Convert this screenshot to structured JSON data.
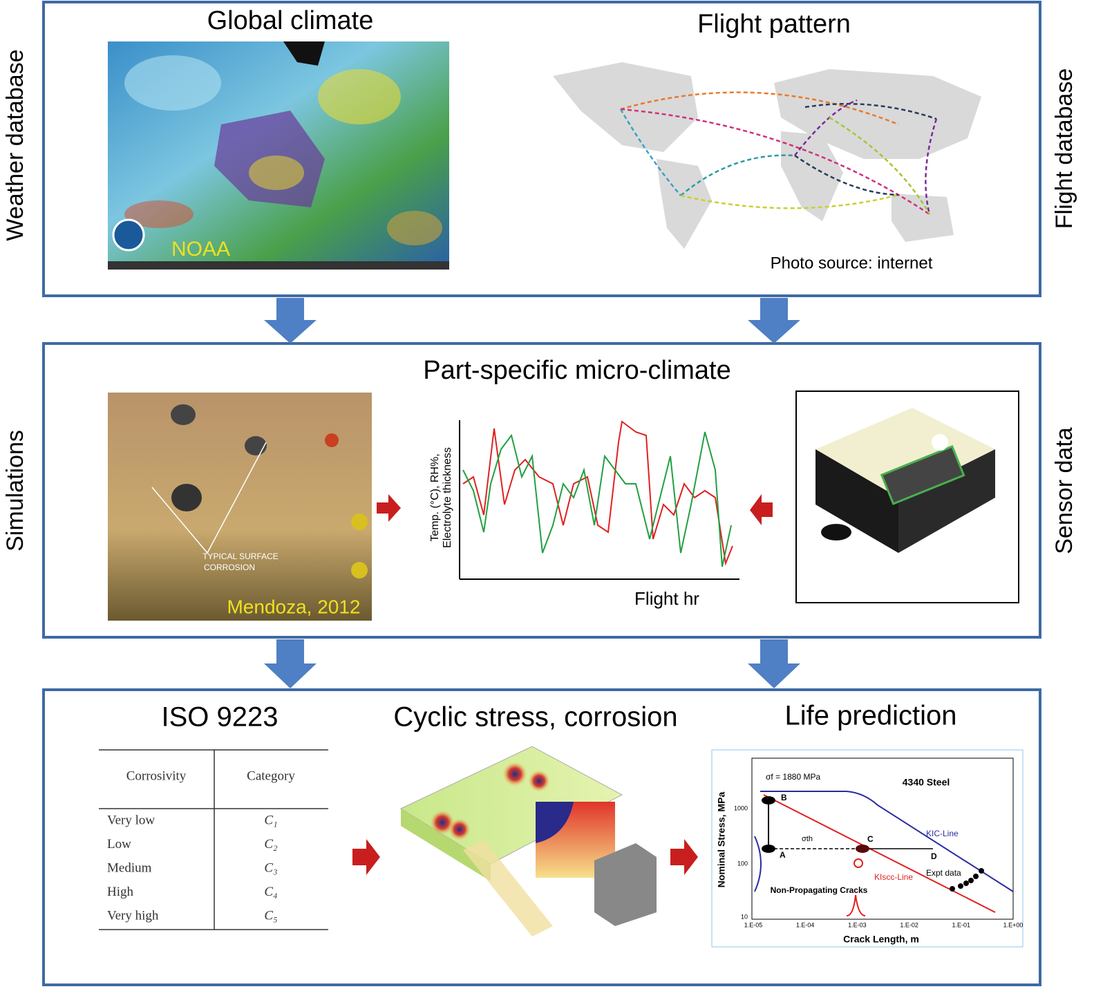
{
  "side_labels": {
    "weather": "Weather database",
    "flight": "Flight database",
    "simulations": "Simulations",
    "sensor": "Sensor data"
  },
  "top": {
    "global_title": "Global climate",
    "noaa": "NOAA",
    "flight_title": "Flight pattern",
    "photo_source": "Photo source: internet"
  },
  "middle": {
    "title": "Part-specific micro-climate",
    "photo_caption": [
      "TYPICAL SURFACE",
      "CORROSION"
    ],
    "photo_credit": "Mendoza, 2012",
    "chart_ylabel": [
      "Temp. (°C), RH%,",
      "Electrolyte thickness"
    ],
    "chart_xlabel": "Flight hr"
  },
  "bottom": {
    "iso_title": "ISO 9223",
    "cyclic_title": "Cyclic stress, corrosion",
    "life_title": "Life prediction",
    "table": {
      "header": [
        "Corrosivity",
        "Category"
      ],
      "rows": [
        [
          "Very low",
          "C₁"
        ],
        [
          "Low",
          "C₂"
        ],
        [
          "Medium",
          "C₃"
        ],
        [
          "High",
          "C₄"
        ],
        [
          "Very high",
          "C₅"
        ]
      ]
    },
    "life_chart": {
      "sigma_f": "σf = 1880 MPa",
      "material": "4340 Steel",
      "ylabel": "Nominal Stress, MPa",
      "xlabel": "Crack Length, m",
      "kic": "KIC-Line",
      "kiscc": "KIscc-Line",
      "expt": "Expt data",
      "npc": "Non-Propagating Cracks",
      "sigma_th": "σth",
      "points": [
        "A",
        "B",
        "C",
        "D"
      ],
      "yticks": [
        "1000",
        "100",
        "10"
      ],
      "xticks": [
        "1.E-05",
        "1.E-04",
        "1.E-03",
        "1.E-02",
        "1.E-01",
        "1.E+00"
      ]
    }
  }
}
